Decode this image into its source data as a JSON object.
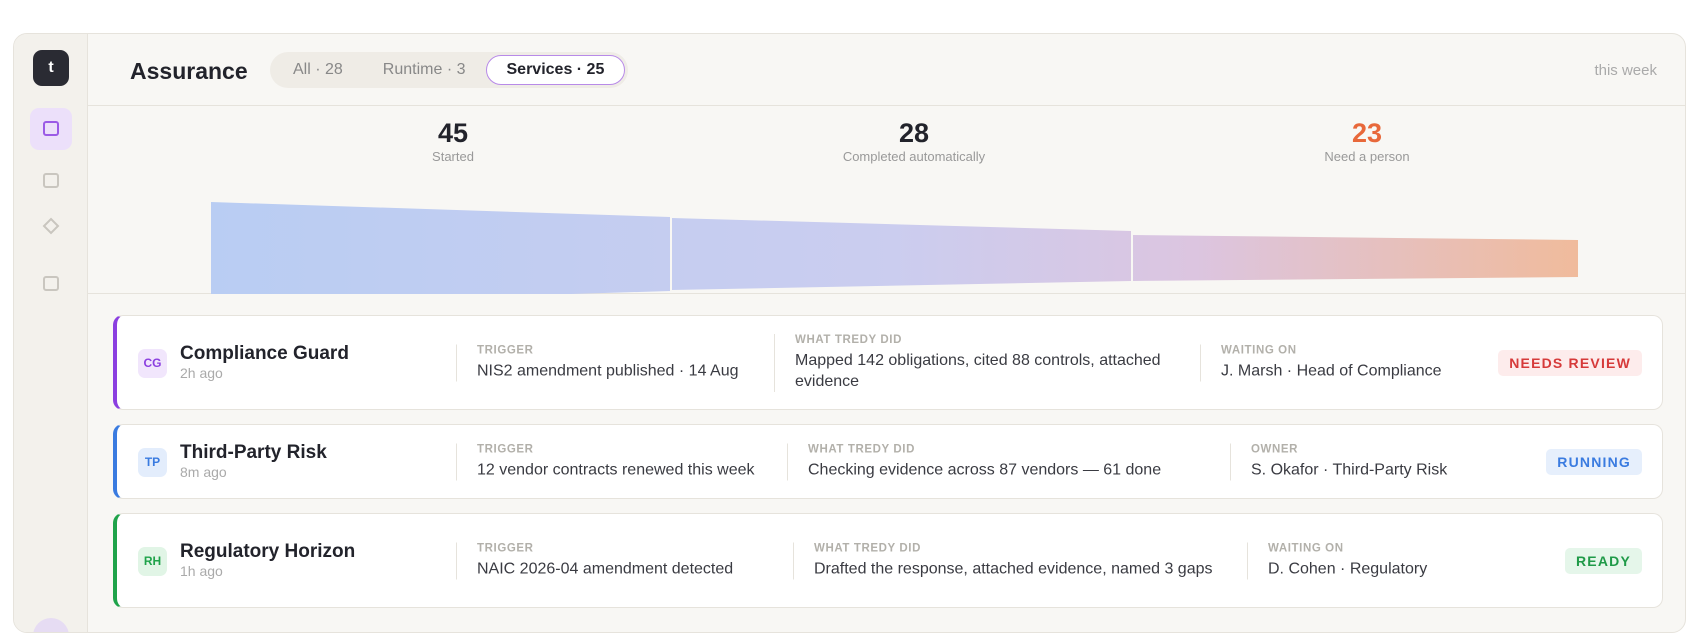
{
  "sidebar": {
    "logo": "t"
  },
  "header": {
    "title": "Assurance",
    "tabs": [
      "All · 28",
      "Runtime · 3",
      "Services · 25"
    ],
    "active_tab": 2,
    "period": "this week"
  },
  "funnel": {
    "stages": [
      {
        "value": 45,
        "label": "Started"
      },
      {
        "value": 28,
        "label": "Completed automatically"
      },
      {
        "value": 23,
        "label": "Need a person"
      }
    ]
  },
  "rows": [
    {
      "initials": "CG",
      "name": "Compliance Guard",
      "time": "2h ago",
      "trigger_label": "TRIGGER",
      "trigger": "NIS2 amendment published · 14 Aug",
      "did_label": "WHAT TREDY DID",
      "did": "Mapped 142 obligations, cited 88 controls, attached evidence",
      "person_label": "WAITING ON",
      "person": "J. Marsh · Head of Compliance",
      "status": "NEEDS REVIEW"
    },
    {
      "initials": "TP",
      "name": "Third-Party Risk",
      "time": "8m ago",
      "trigger_label": "TRIGGER",
      "trigger": "12 vendor contracts renewed this week",
      "did_label": "WHAT TREDY DID",
      "did": "Checking evidence across 87 vendors — 61 done",
      "person_label": "OWNER",
      "person": "S. Okafor · Third-Party Risk",
      "status": "RUNNING"
    },
    {
      "initials": "RH",
      "name": "Regulatory Horizon",
      "time": "1h ago",
      "trigger_label": "TRIGGER",
      "trigger": "NAIC 2026-04 amendment detected",
      "did_label": "WHAT TREDY DID",
      "did": "Drafted the response, attached evidence, named 3 gaps",
      "person_label": "WAITING ON",
      "person": "D. Cohen · Regulatory",
      "status": "READY"
    }
  ]
}
